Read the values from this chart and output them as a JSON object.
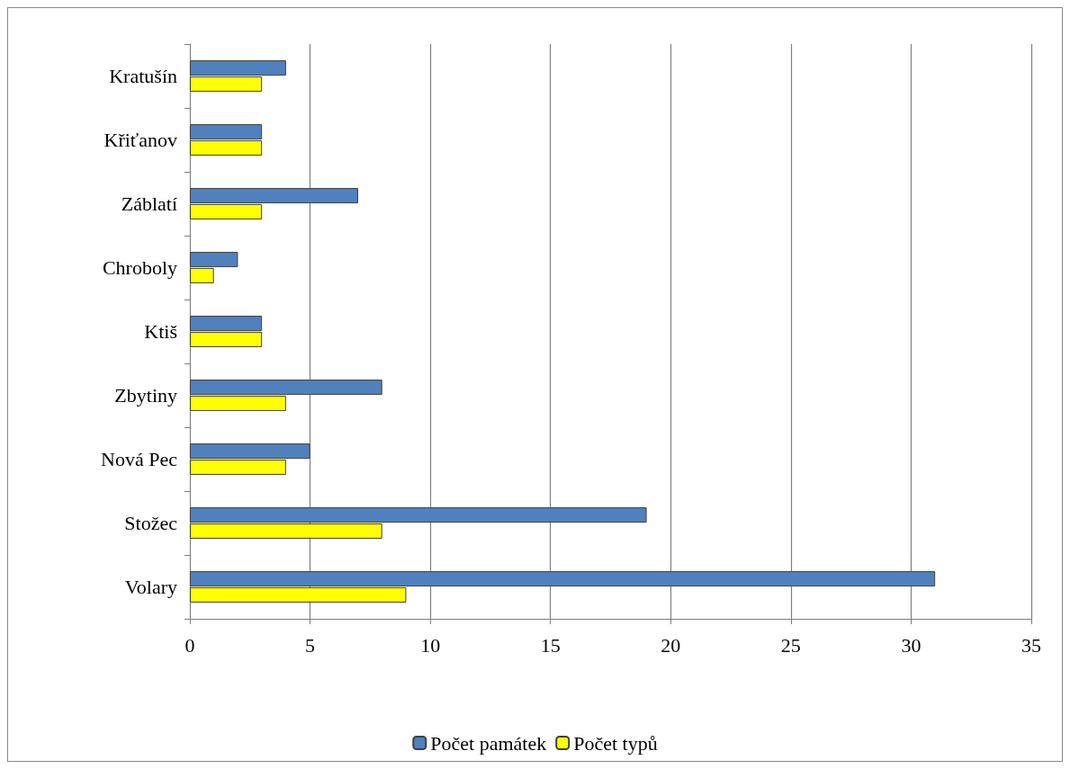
{
  "chart_data": {
    "type": "bar",
    "orientation": "horizontal",
    "categories": [
      "Kratušín",
      "Křiťanov",
      "Záblatí",
      "Chroboly",
      "Ktiš",
      "Zbytiny",
      "Nová Pec",
      "Stožec",
      "Volary"
    ],
    "series": [
      {
        "name": "Počet památek",
        "color": "#4f81bd",
        "values": [
          4,
          3,
          7,
          2,
          3,
          8,
          5,
          19,
          31
        ]
      },
      {
        "name": "Počet typů",
        "color": "#ffff00",
        "values": [
          3,
          3,
          3,
          1,
          3,
          4,
          4,
          8,
          9
        ]
      }
    ],
    "xlim": [
      0,
      35
    ],
    "xticks": [
      0,
      5,
      10,
      15,
      20,
      25,
      30,
      35
    ],
    "grid": "x",
    "legend": "bottom"
  }
}
